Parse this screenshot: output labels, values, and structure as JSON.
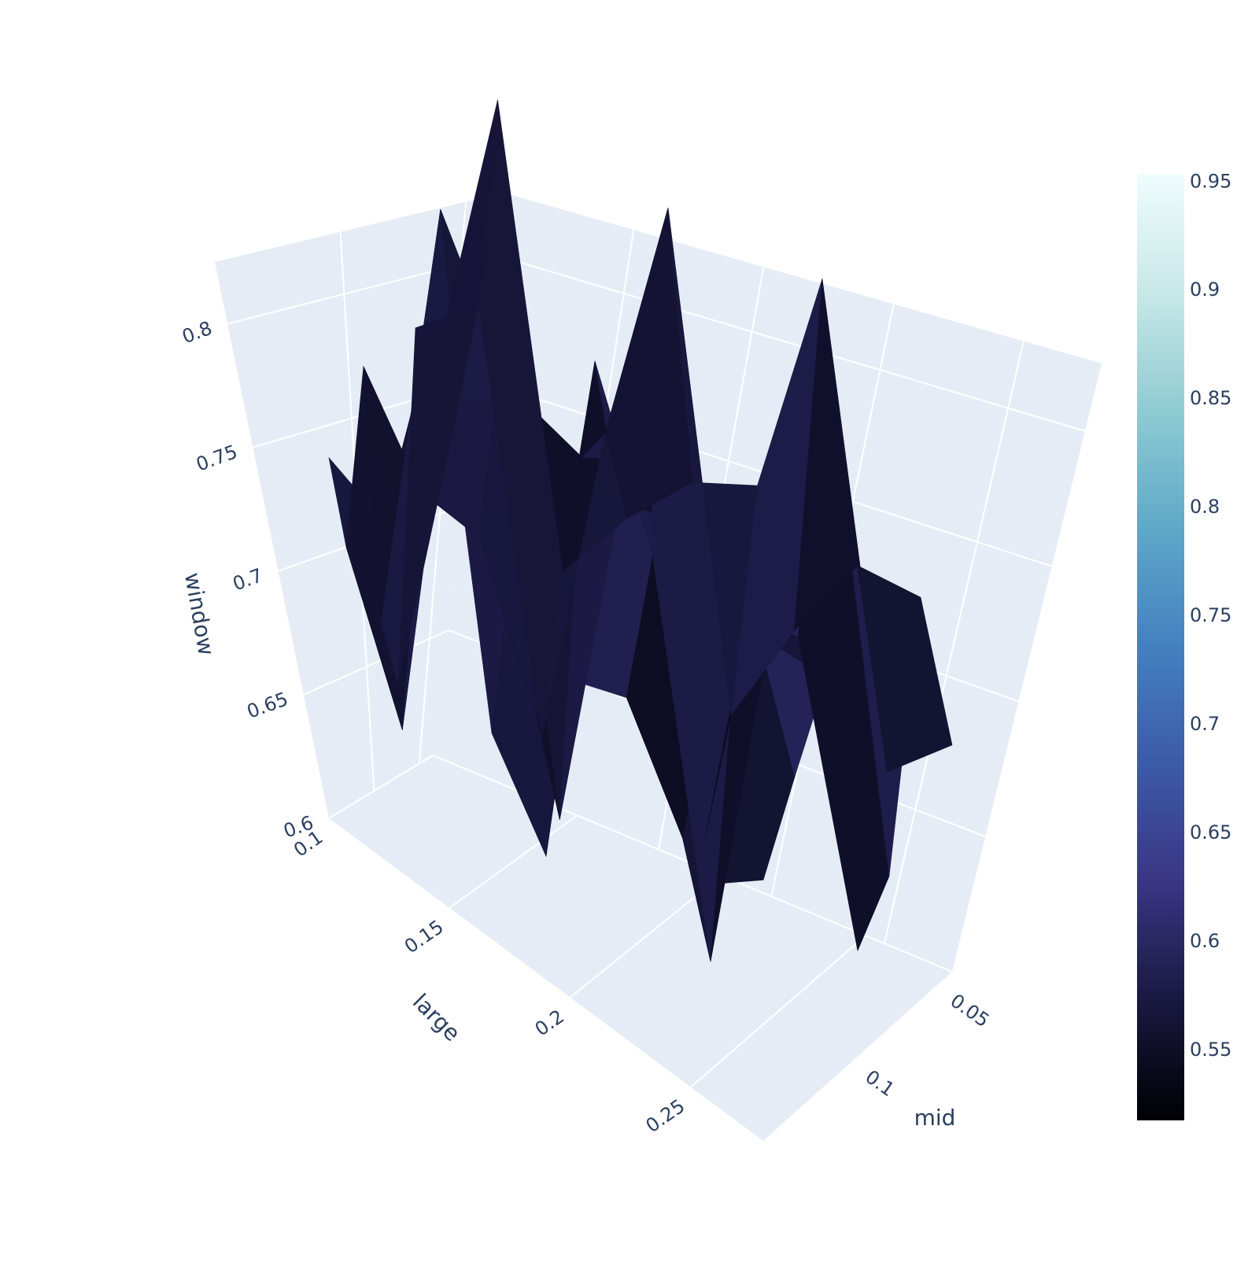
{
  "chart_data": {
    "type": "surface",
    "title": "",
    "axes": {
      "x": {
        "label": "mid",
        "ticks": [
          "0.05",
          "0.1"
        ],
        "range": [
          0.02,
          0.13
        ]
      },
      "y": {
        "label": "large",
        "ticks": [
          "0.1",
          "0.15",
          "0.2",
          "0.25"
        ],
        "range": [
          0.1,
          0.3
        ]
      },
      "z": {
        "label": "window",
        "ticks": [
          "0.6",
          "0.65",
          "0.7",
          "0.75",
          "0.8"
        ],
        "range": [
          0.6,
          0.8
        ]
      }
    },
    "colorbar": {
      "ticks": [
        "0.55",
        "0.6",
        "0.65",
        "0.7",
        "0.75",
        "0.8",
        "0.85",
        "0.9",
        "0.95"
      ],
      "range": [
        0.517,
        0.953
      ]
    },
    "colorscale": [
      "#000004",
      "#19183f",
      "#3a3583",
      "#3c5aa8",
      "#4480c0",
      "#5ea8c8",
      "#8fcbd3",
      "#c8e8e7",
      "#eefcfd"
    ],
    "background": {
      "plane": "#e5ecf6",
      "grid": "#ffffff",
      "paper": "#ffffff"
    }
  }
}
